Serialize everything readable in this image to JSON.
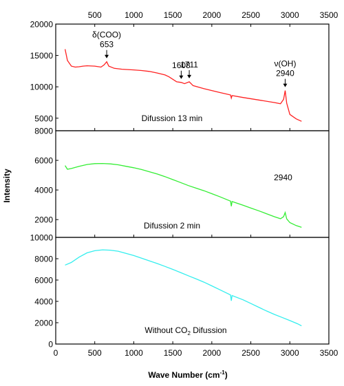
{
  "chart_data": {
    "type": "line",
    "ylabel": "Intensity",
    "xlabel": "Wave Number (cm",
    "xlabel_sup": "-1",
    "xlabel_tail": ")",
    "xlim": [
      0,
      3500
    ],
    "x_ticks": [
      "0",
      "500",
      "1000",
      "1500",
      "2000",
      "2500",
      "3000",
      "3500"
    ],
    "top_x_ticks": [
      "500",
      "1000",
      "1500",
      "2000",
      "2500",
      "3000",
      "3500"
    ],
    "panels": [
      {
        "name": "Difussion 13 min",
        "label": "Difussion 13 min",
        "color": "#ff2020",
        "ylim": [
          3000,
          20000
        ],
        "y_ticks": [
          {
            "value": 5000,
            "label": "5000"
          },
          {
            "value": 10000,
            "label": "10000"
          },
          {
            "value": 15000,
            "label": "15000"
          },
          {
            "value": 20000,
            "label": "20000"
          }
        ],
        "points": [
          [
            120,
            16000
          ],
          [
            150,
            14200
          ],
          [
            200,
            13300
          ],
          [
            250,
            13150
          ],
          [
            300,
            13200
          ],
          [
            350,
            13300
          ],
          [
            400,
            13350
          ],
          [
            500,
            13300
          ],
          [
            580,
            13150
          ],
          [
            620,
            13500
          ],
          [
            653,
            14000
          ],
          [
            680,
            13300
          ],
          [
            750,
            12950
          ],
          [
            850,
            12800
          ],
          [
            1000,
            12700
          ],
          [
            1100,
            12600
          ],
          [
            1200,
            12450
          ],
          [
            1300,
            12200
          ],
          [
            1400,
            11900
          ],
          [
            1450,
            11600
          ],
          [
            1500,
            11200
          ],
          [
            1550,
            10800
          ],
          [
            1608,
            10700
          ],
          [
            1650,
            10500
          ],
          [
            1711,
            10800
          ],
          [
            1760,
            10200
          ],
          [
            1900,
            9700
          ],
          [
            2100,
            9100
          ],
          [
            2240,
            8700
          ],
          [
            2250,
            8200
          ],
          [
            2260,
            8600
          ],
          [
            2400,
            8300
          ],
          [
            2600,
            7900
          ],
          [
            2800,
            7500
          ],
          [
            2880,
            7300
          ],
          [
            2920,
            8000
          ],
          [
            2940,
            9400
          ],
          [
            2960,
            7400
          ],
          [
            3000,
            5600
          ],
          [
            3080,
            4900
          ],
          [
            3150,
            4500
          ]
        ],
        "annotations": [
          {
            "lines": [
              "δ(COO)",
              "653"
            ],
            "x": 653,
            "target_y": 14000
          },
          {
            "lines": [
              "1608"
            ],
            "x": 1608,
            "target_y": 10700
          },
          {
            "lines": [
              "1711"
            ],
            "x": 1711,
            "target_y": 10800
          },
          {
            "lines": [
              "ν(OH)",
              "2940"
            ],
            "x": 2940,
            "target_y": 9400
          }
        ]
      },
      {
        "name": "Difussion 2 min",
        "label": "Difussion 2 min",
        "color": "#33ee33",
        "ylim": [
          800,
          8000
        ],
        "y_ticks": [
          {
            "value": 2000,
            "label": "2000"
          },
          {
            "value": 4000,
            "label": "4000"
          },
          {
            "value": 6000,
            "label": "6000"
          },
          {
            "value": 8000,
            "label": "8000"
          }
        ],
        "points": [
          [
            120,
            5650
          ],
          [
            150,
            5400
          ],
          [
            200,
            5450
          ],
          [
            300,
            5600
          ],
          [
            400,
            5720
          ],
          [
            500,
            5780
          ],
          [
            600,
            5790
          ],
          [
            700,
            5760
          ],
          [
            800,
            5700
          ],
          [
            900,
            5600
          ],
          [
            1000,
            5500
          ],
          [
            1100,
            5380
          ],
          [
            1200,
            5230
          ],
          [
            1300,
            5080
          ],
          [
            1400,
            4900
          ],
          [
            1500,
            4700
          ],
          [
            1600,
            4500
          ],
          [
            1700,
            4300
          ],
          [
            1800,
            4120
          ],
          [
            1900,
            3950
          ],
          [
            2000,
            3750
          ],
          [
            2100,
            3550
          ],
          [
            2240,
            3250
          ],
          [
            2250,
            2900
          ],
          [
            2260,
            3220
          ],
          [
            2400,
            2970
          ],
          [
            2500,
            2780
          ],
          [
            2600,
            2600
          ],
          [
            2700,
            2400
          ],
          [
            2800,
            2200
          ],
          [
            2880,
            2060
          ],
          [
            2920,
            2200
          ],
          [
            2940,
            2480
          ],
          [
            2960,
            2050
          ],
          [
            3000,
            1800
          ],
          [
            3080,
            1600
          ],
          [
            3150,
            1480
          ]
        ],
        "annotations": [
          {
            "lines": [
              "2940"
            ],
            "x": 2940,
            "target_y": null
          }
        ]
      },
      {
        "name": "Without CO2 Difussion",
        "label_pre": "Without CO",
        "label_sub": "2",
        "label_post": " Difussion",
        "color": "#33eeee",
        "ylim": [
          0,
          10000
        ],
        "y_ticks": [
          {
            "value": 0,
            "label": "0"
          },
          {
            "value": 2000,
            "label": "2000"
          },
          {
            "value": 4000,
            "label": "4000"
          },
          {
            "value": 6000,
            "label": "6000"
          },
          {
            "value": 8000,
            "label": "8000"
          },
          {
            "value": 10000,
            "label": "10000"
          }
        ],
        "points": [
          [
            120,
            7400
          ],
          [
            200,
            7650
          ],
          [
            300,
            8150
          ],
          [
            400,
            8550
          ],
          [
            500,
            8750
          ],
          [
            600,
            8830
          ],
          [
            700,
            8800
          ],
          [
            800,
            8700
          ],
          [
            900,
            8500
          ],
          [
            1000,
            8300
          ],
          [
            1100,
            8050
          ],
          [
            1200,
            7800
          ],
          [
            1300,
            7550
          ],
          [
            1400,
            7280
          ],
          [
            1500,
            7000
          ],
          [
            1600,
            6700
          ],
          [
            1700,
            6400
          ],
          [
            1800,
            6100
          ],
          [
            1900,
            5800
          ],
          [
            2000,
            5450
          ],
          [
            2100,
            5100
          ],
          [
            2240,
            4600
          ],
          [
            2250,
            4050
          ],
          [
            2260,
            4550
          ],
          [
            2400,
            4150
          ],
          [
            2500,
            3800
          ],
          [
            2600,
            3450
          ],
          [
            2700,
            3100
          ],
          [
            2800,
            2780
          ],
          [
            2900,
            2500
          ],
          [
            3000,
            2200
          ],
          [
            3100,
            1900
          ],
          [
            3150,
            1700
          ]
        ],
        "annotations": []
      }
    ]
  }
}
